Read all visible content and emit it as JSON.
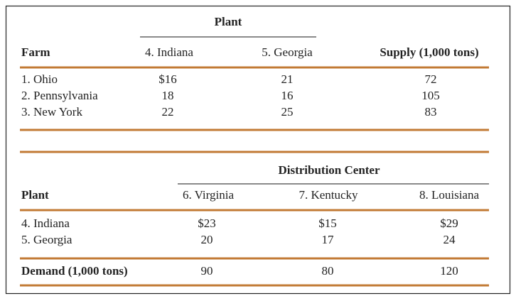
{
  "table1": {
    "group_header": "Plant",
    "columns": [
      "Farm",
      "4. Indiana",
      "5. Georgia",
      "Supply (1,000 tons)"
    ],
    "rows": [
      [
        "1. Ohio",
        "$16",
        "21",
        "72"
      ],
      [
        "2. Pennsylvania",
        "18",
        "16",
        "105"
      ],
      [
        "3. New York",
        "22",
        "25",
        "83"
      ]
    ]
  },
  "table2": {
    "group_header": "Distribution Center",
    "columns": [
      "Plant",
      "6. Virginia",
      "7. Kentucky",
      "8. Louisiana"
    ],
    "rows": [
      [
        "4. Indiana",
        "$23",
        "$15",
        "$29"
      ],
      [
        "5. Georgia",
        "20",
        "17",
        "24"
      ]
    ],
    "footer": [
      "Demand (1,000 tons)",
      "90",
      "80",
      "120"
    ]
  }
}
